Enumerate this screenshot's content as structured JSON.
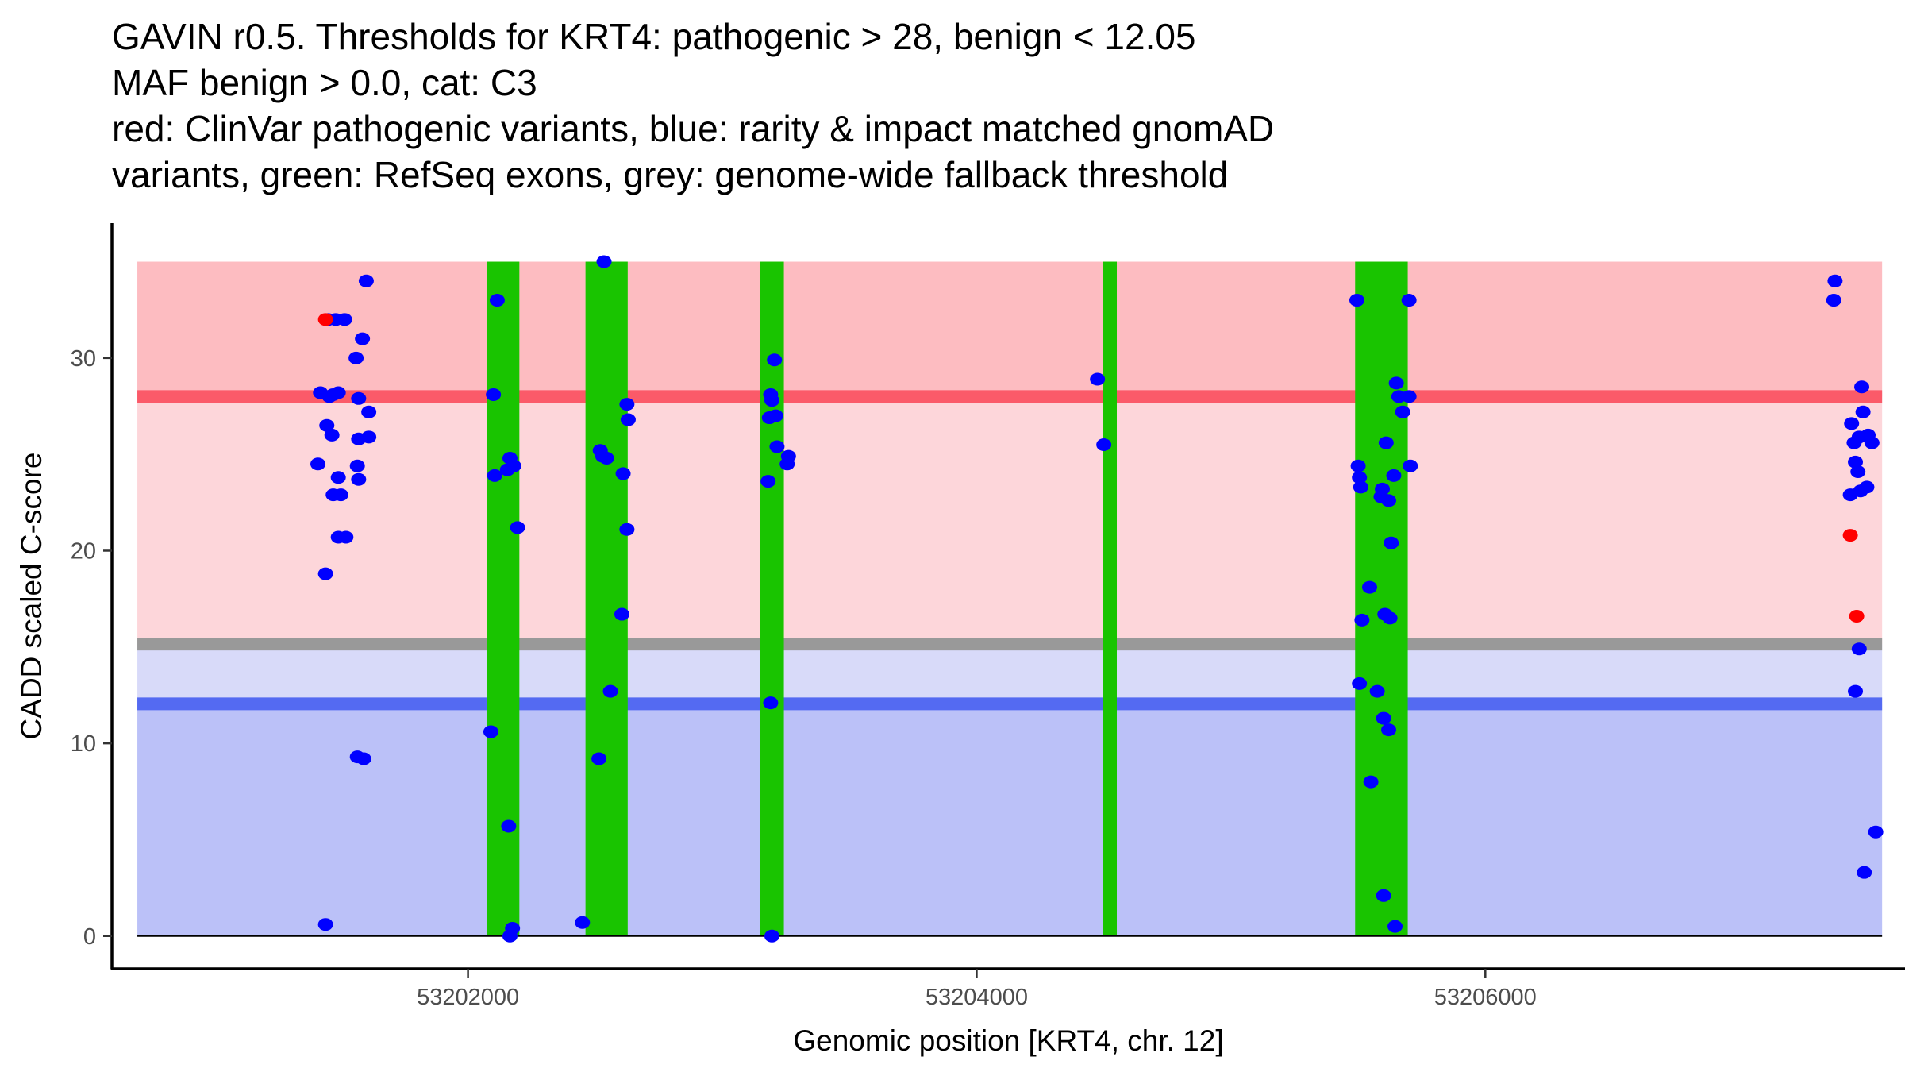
{
  "chart_data": {
    "type": "scatter",
    "title_lines": [
      "GAVIN r0.5. Thresholds for KRT4: pathogenic > 28, benign < 12.05",
      "MAF benign > 0.0, cat: C3",
      "red: ClinVar pathogenic variants, blue: rarity & impact matched gnomAD",
      "variants, green: RefSeq exons, grey: genome-wide fallback threshold"
    ],
    "xlabel": "Genomic position [KRT4, chr. 12]",
    "ylabel": "CADD scaled C-score",
    "xlim": [
      53200600,
      53207650
    ],
    "ylim": [
      -1.7,
      37
    ],
    "x_ticks": [
      53202000,
      53204000,
      53206000
    ],
    "x_tick_labels": [
      "53202000",
      "53204000",
      "53206000"
    ],
    "y_ticks": [
      0,
      10,
      20,
      30
    ],
    "y_tick_labels": [
      "0",
      "10",
      "20",
      "30"
    ],
    "grid": false,
    "colors": {
      "pathogenic_region": "#fdbcc1",
      "pathogenic_threshold": "#fb5a69",
      "intermediate_pathogenic_region": "#fdd6da",
      "fallback_threshold": "#999999",
      "intermediate_benign_region": "#d8daf9",
      "benign_threshold": "#546af2",
      "benign_region": "#bbc1f8",
      "exon": "#19c400",
      "pathogenic_variant": "#ff0000",
      "population_variant": "#0000ff"
    },
    "regions": {
      "top": 35,
      "pathogenic_threshold": 28,
      "fallback_threshold": 15.15,
      "benign_threshold": 12.05,
      "bottom": 0
    },
    "data_x_range": [
      53200700,
      53207560
    ],
    "exons": [
      {
        "start": 53202076,
        "end": 53202202
      },
      {
        "start": 53202462,
        "end": 53202628
      },
      {
        "start": 53203148,
        "end": 53203242
      },
      {
        "start": 53204497,
        "end": 53204551
      },
      {
        "start": 53205488,
        "end": 53205695
      }
    ],
    "series": [
      {
        "name": "ClinVar pathogenic variants",
        "color": "#ff0000",
        "points": [
          [
            53201440,
            32.0
          ],
          [
            53207435,
            20.8
          ],
          [
            53207460,
            16.6
          ]
        ]
      },
      {
        "name": "rarity & impact matched gnomAD variants",
        "color": "#0000ff",
        "points": [
          [
            53201450,
            32.0
          ],
          [
            53201480,
            32.0
          ],
          [
            53201515,
            32.0
          ],
          [
            53201560,
            30.0
          ],
          [
            53201585,
            31.0
          ],
          [
            53201600,
            34.0
          ],
          [
            53201420,
            28.2
          ],
          [
            53201455,
            28.0
          ],
          [
            53201470,
            28.1
          ],
          [
            53201490,
            28.2
          ],
          [
            53201570,
            27.9
          ],
          [
            53201610,
            27.2
          ],
          [
            53201445,
            26.5
          ],
          [
            53201465,
            26.0
          ],
          [
            53201570,
            25.8
          ],
          [
            53201610,
            25.9
          ],
          [
            53201410,
            24.5
          ],
          [
            53201490,
            23.8
          ],
          [
            53201565,
            24.4
          ],
          [
            53201570,
            23.7
          ],
          [
            53201470,
            22.9
          ],
          [
            53201500,
            22.9
          ],
          [
            53201490,
            20.7
          ],
          [
            53201520,
            20.7
          ],
          [
            53201440,
            18.8
          ],
          [
            53201565,
            9.3
          ],
          [
            53201590,
            9.2
          ],
          [
            53201440,
            0.6
          ],
          [
            53202115,
            33.0
          ],
          [
            53202100,
            28.1
          ],
          [
            53202105,
            23.9
          ],
          [
            53202155,
            24.2
          ],
          [
            53202165,
            24.8
          ],
          [
            53202180,
            24.4
          ],
          [
            53202195,
            21.2
          ],
          [
            53202090,
            10.6
          ],
          [
            53202160,
            5.7
          ],
          [
            53202175,
            0.4
          ],
          [
            53202165,
            0.0
          ],
          [
            53202535,
            35.0
          ],
          [
            53202520,
            25.2
          ],
          [
            53202530,
            24.9
          ],
          [
            53202545,
            24.8
          ],
          [
            53202610,
            24.0
          ],
          [
            53202625,
            27.6
          ],
          [
            53202630,
            26.8
          ],
          [
            53202625,
            21.1
          ],
          [
            53202605,
            16.7
          ],
          [
            53202560,
            12.7
          ],
          [
            53202515,
            9.2
          ],
          [
            53202450,
            0.7
          ],
          [
            53203205,
            29.9
          ],
          [
            53203190,
            28.1
          ],
          [
            53203195,
            27.8
          ],
          [
            53203185,
            26.9
          ],
          [
            53203210,
            27.0
          ],
          [
            53203215,
            25.4
          ],
          [
            53203260,
            24.9
          ],
          [
            53203255,
            24.5
          ],
          [
            53203180,
            23.6
          ],
          [
            53203190,
            12.1
          ],
          [
            53203195,
            0.0
          ],
          [
            53204475,
            28.9
          ],
          [
            53204500,
            25.5
          ],
          [
            53205495,
            33.0
          ],
          [
            53205700,
            33.0
          ],
          [
            53205650,
            28.7
          ],
          [
            53205675,
            27.2
          ],
          [
            53205660,
            28.0
          ],
          [
            53205700,
            28.0
          ],
          [
            53205610,
            25.6
          ],
          [
            53205500,
            24.4
          ],
          [
            53205505,
            23.8
          ],
          [
            53205510,
            23.3
          ],
          [
            53205595,
            23.2
          ],
          [
            53205590,
            22.8
          ],
          [
            53205620,
            22.6
          ],
          [
            53205640,
            23.9
          ],
          [
            53205705,
            24.4
          ],
          [
            53205630,
            20.4
          ],
          [
            53205545,
            18.1
          ],
          [
            53205515,
            16.4
          ],
          [
            53205605,
            16.7
          ],
          [
            53205625,
            16.5
          ],
          [
            53205505,
            13.1
          ],
          [
            53205575,
            12.7
          ],
          [
            53205600,
            11.3
          ],
          [
            53205620,
            10.7
          ],
          [
            53205550,
            8.0
          ],
          [
            53205600,
            2.1
          ],
          [
            53205645,
            0.5
          ],
          [
            53207375,
            34.0
          ],
          [
            53207370,
            33.0
          ],
          [
            53207440,
            26.6
          ],
          [
            53207480,
            28.5
          ],
          [
            53207485,
            27.2
          ],
          [
            53207450,
            25.6
          ],
          [
            53207470,
            25.9
          ],
          [
            53207505,
            26.0
          ],
          [
            53207520,
            25.6
          ],
          [
            53207455,
            24.6
          ],
          [
            53207465,
            24.1
          ],
          [
            53207435,
            22.9
          ],
          [
            53207475,
            23.1
          ],
          [
            53207500,
            23.3
          ],
          [
            53207470,
            14.9
          ],
          [
            53207455,
            12.7
          ],
          [
            53207535,
            5.4
          ],
          [
            53207490,
            3.3
          ]
        ]
      }
    ]
  }
}
